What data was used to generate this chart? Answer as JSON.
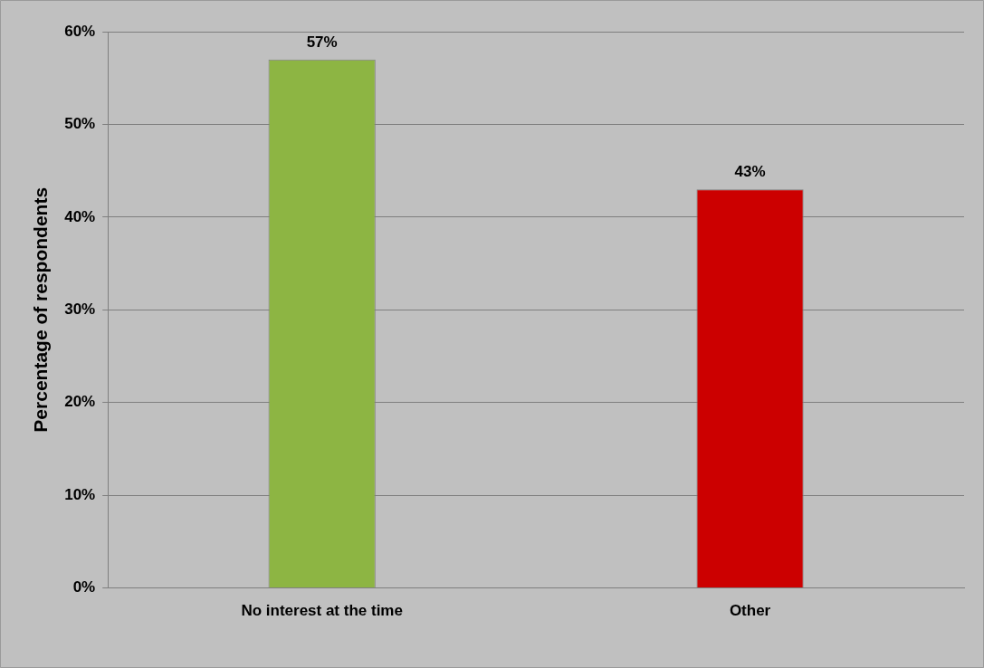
{
  "chart_data": {
    "type": "bar",
    "ylabel": "Percentage of respondents",
    "categories": [
      "No interest at the time",
      "Other"
    ],
    "values": [
      57,
      43
    ],
    "colors": [
      "#8db543",
      "#cc0000"
    ],
    "value_labels": [
      "57%",
      "43%"
    ],
    "ylim": [
      0,
      60
    ],
    "yticks": [
      {
        "value": 0,
        "label": "0%"
      },
      {
        "value": 10,
        "label": "10%"
      },
      {
        "value": 20,
        "label": "20%"
      },
      {
        "value": 30,
        "label": "30%"
      },
      {
        "value": 40,
        "label": "40%"
      },
      {
        "value": 50,
        "label": "50%"
      },
      {
        "value": 60,
        "label": "60%"
      }
    ],
    "grid": "y"
  }
}
